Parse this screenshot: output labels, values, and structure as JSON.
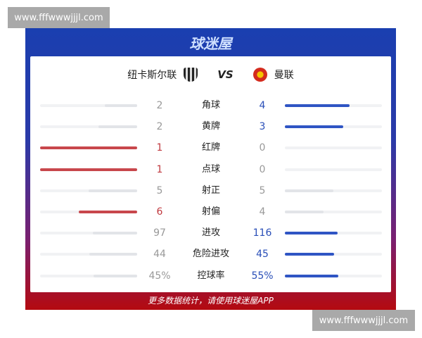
{
  "watermark": "www.fffwwwjjjl.com",
  "brand": "球迷屋",
  "home_team": "纽卡斯尔联",
  "vs": "VS",
  "away_team": "曼联",
  "colors": {
    "home_win": "#c8474c",
    "away_win": "#2f55c4",
    "neutral_bar": "#e2e4e8",
    "home_win_text": "#c0393f",
    "away_win_text": "#2a4fb8",
    "neutral_text": "#999999"
  },
  "stats": [
    {
      "label": "角球",
      "home": "2",
      "away": "4",
      "home_val": 2,
      "away_val": 4
    },
    {
      "label": "黄牌",
      "home": "2",
      "away": "3",
      "home_val": 2,
      "away_val": 3
    },
    {
      "label": "红牌",
      "home": "1",
      "away": "0",
      "home_val": 1,
      "away_val": 0
    },
    {
      "label": "点球",
      "home": "1",
      "away": "0",
      "home_val": 1,
      "away_val": 0
    },
    {
      "label": "射正",
      "home": "5",
      "away": "5",
      "home_val": 5,
      "away_val": 5
    },
    {
      "label": "射偏",
      "home": "6",
      "away": "4",
      "home_val": 6,
      "away_val": 4
    },
    {
      "label": "进攻",
      "home": "97",
      "away": "116",
      "home_val": 97,
      "away_val": 116
    },
    {
      "label": "危险进攻",
      "home": "44",
      "away": "45",
      "home_val": 44,
      "away_val": 45
    },
    {
      "label": "控球率",
      "home": "45%",
      "away": "55%",
      "home_val": 45,
      "away_val": 55
    }
  ],
  "footer": "更多数据统计，请使用球迷屋APP"
}
